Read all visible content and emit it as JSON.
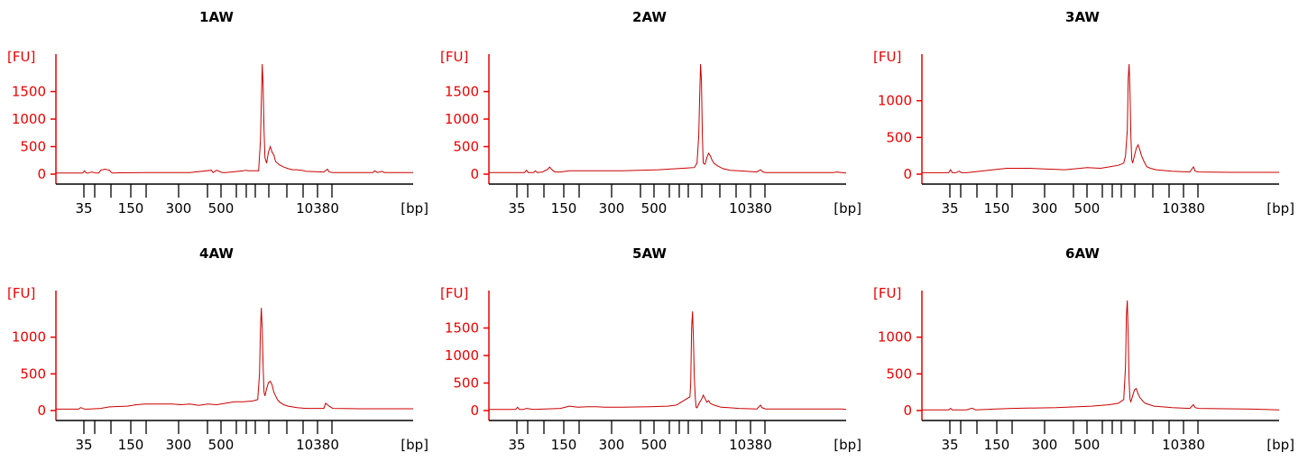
{
  "colors": {
    "trace": "#cc0000",
    "yaxis": "#ee0000",
    "xaxis": "#000000",
    "title": "#000000"
  },
  "chart_data": [
    {
      "type": "line",
      "title": "1AW",
      "ylabel": "[FU]",
      "xlabel": "[bp]",
      "ylim": [
        0,
        2000
      ],
      "yticks": [
        0,
        500,
        1000,
        1500
      ],
      "ladder_bp": [
        "35",
        "",
        "",
        "150",
        "",
        "300",
        "",
        "500",
        "",
        "",
        "",
        "",
        "",
        "",
        "10380"
      ],
      "x_labeled_ticks": [
        "35",
        "150",
        "300",
        "500",
        "10380"
      ],
      "series": [
        {
          "x": [
            0,
            30,
            32,
            34,
            36,
            40,
            45,
            48,
            50,
            55,
            60,
            62,
            64,
            70,
            100,
            150,
            174,
            176,
            180,
            186,
            190,
            210,
            212,
            216,
            227,
            229,
            230,
            231,
            232,
            233,
            234,
            236,
            238,
            240,
            242,
            244,
            246,
            250,
            255,
            260,
            265,
            270,
            275,
            280,
            300,
            304,
            306,
            310,
            355,
            357,
            360,
            365,
            368,
            400
          ],
          "y": [
            20,
            20,
            60,
            20,
            20,
            40,
            20,
            20,
            70,
            90,
            70,
            30,
            20,
            25,
            30,
            30,
            70,
            30,
            70,
            30,
            30,
            60,
            70,
            60,
            60,
            600,
            1300,
            2000,
            1600,
            800,
            300,
            200,
            400,
            500,
            400,
            350,
            230,
            170,
            130,
            100,
            80,
            80,
            70,
            50,
            40,
            90,
            40,
            30,
            30,
            60,
            30,
            50,
            30,
            30
          ]
        }
      ]
    },
    {
      "type": "line",
      "title": "2AW",
      "ylabel": "[FU]",
      "xlabel": "[bp]",
      "ylim": [
        0,
        2000
      ],
      "yticks": [
        0,
        500,
        1000,
        1500
      ],
      "ladder_bp": [
        "35",
        "",
        "",
        "150",
        "",
        "300",
        "",
        "500",
        "",
        "",
        "",
        "",
        "",
        "",
        "10380"
      ],
      "x_labeled_ticks": [
        "35",
        "150",
        "300",
        "500",
        "10380"
      ],
      "series": [
        {
          "x": [
            0,
            40,
            42,
            44,
            50,
            52,
            54,
            60,
            66,
            68,
            70,
            72,
            74,
            80,
            90,
            150,
            190,
            230,
            233,
            235,
            236,
            237,
            238,
            239,
            240,
            242,
            244,
            246,
            248,
            250,
            252,
            256,
            262,
            270,
            280,
            300,
            304,
            307,
            310,
            385,
            390,
            395,
            400
          ],
          "y": [
            30,
            30,
            70,
            30,
            30,
            60,
            30,
            40,
            90,
            130,
            90,
            60,
            40,
            40,
            60,
            60,
            80,
            120,
            200,
            700,
            1400,
            2000,
            1700,
            700,
            200,
            180,
            300,
            380,
            330,
            250,
            200,
            150,
            100,
            70,
            60,
            40,
            80,
            40,
            30,
            30,
            40,
            30,
            20
          ]
        }
      ]
    },
    {
      "type": "line",
      "title": "3AW",
      "ylabel": "[FU]",
      "xlabel": "[bp]",
      "ylim": [
        0,
        1500
      ],
      "yticks": [
        0,
        500,
        1000
      ],
      "ladder_bp": [
        "35",
        "",
        "",
        "150",
        "",
        "300",
        "",
        "500",
        "",
        "",
        "",
        "",
        "",
        "",
        "10380"
      ],
      "x_labeled_ticks": [
        "35",
        "150",
        "300",
        "500",
        "10380"
      ],
      "series": [
        {
          "x": [
            0,
            30,
            32,
            34,
            38,
            42,
            44,
            50,
            80,
            95,
            120,
            160,
            185,
            200,
            210,
            220,
            226,
            228,
            230,
            231,
            232,
            233,
            234,
            235,
            236,
            238,
            240,
            242,
            244,
            246,
            248,
            250,
            252,
            256,
            262,
            270,
            280,
            300,
            304,
            306,
            310,
            350,
            400
          ],
          "y": [
            20,
            20,
            60,
            20,
            20,
            40,
            20,
            20,
            60,
            80,
            80,
            60,
            90,
            80,
            100,
            120,
            150,
            250,
            600,
            1300,
            1500,
            1100,
            500,
            200,
            150,
            250,
            350,
            400,
            330,
            250,
            190,
            140,
            100,
            80,
            60,
            50,
            40,
            30,
            100,
            40,
            30,
            25,
            25
          ]
        }
      ]
    },
    {
      "type": "line",
      "title": "4AW",
      "ylabel": "[FU]",
      "xlabel": "[bp]",
      "ylim": [
        0,
        1500
      ],
      "yticks": [
        0,
        500,
        1000
      ],
      "ladder_bp": [
        "35",
        "",
        "",
        "150",
        "",
        "300",
        "",
        "500",
        "",
        "",
        "",
        "",
        "",
        "",
        "10380"
      ],
      "x_labeled_ticks": [
        "35",
        "150",
        "300",
        "500",
        "10380"
      ],
      "series": [
        {
          "x": [
            0,
            25,
            28,
            32,
            36,
            50,
            60,
            80,
            90,
            100,
            130,
            140,
            150,
            160,
            170,
            180,
            190,
            200,
            210,
            220,
            226,
            228,
            229,
            230,
            231,
            232,
            233,
            234,
            236,
            238,
            240,
            242,
            244,
            246,
            248,
            250,
            255,
            260,
            270,
            280,
            300,
            302,
            306,
            310,
            340,
            400
          ],
          "y": [
            20,
            20,
            40,
            20,
            20,
            30,
            50,
            60,
            80,
            90,
            90,
            80,
            90,
            70,
            90,
            80,
            100,
            120,
            120,
            130,
            150,
            500,
            1100,
            1400,
            1100,
            600,
            250,
            200,
            300,
            380,
            400,
            350,
            250,
            200,
            150,
            120,
            80,
            60,
            40,
            30,
            30,
            100,
            60,
            30,
            25,
            25
          ]
        }
      ]
    },
    {
      "type": "line",
      "title": "5AW",
      "ylabel": "[FU]",
      "xlabel": "[bp]",
      "ylim": [
        0,
        2000
      ],
      "yticks": [
        0,
        500,
        1000,
        1500
      ],
      "ladder_bp": [
        "35",
        "",
        "",
        "150",
        "",
        "300",
        "",
        "500",
        "",
        "",
        "",
        "",
        "",
        "",
        "10380"
      ],
      "x_labeled_ticks": [
        "35",
        "150",
        "300",
        "500",
        "10380"
      ],
      "series": [
        {
          "x": [
            0,
            30,
            32,
            34,
            38,
            42,
            50,
            80,
            90,
            100,
            110,
            120,
            130,
            150,
            180,
            200,
            210,
            215,
            220,
            225,
            226,
            227,
            228,
            229,
            230,
            231,
            232,
            233,
            236,
            238,
            240,
            242,
            244,
            246,
            248,
            252,
            256,
            260,
            270,
            280,
            300,
            304,
            306,
            310,
            395,
            400
          ],
          "y": [
            20,
            20,
            60,
            20,
            20,
            40,
            20,
            40,
            80,
            60,
            70,
            70,
            60,
            60,
            70,
            80,
            100,
            150,
            200,
            250,
            500,
            1500,
            1800,
            1300,
            600,
            250,
            60,
            50,
            150,
            200,
            280,
            220,
            150,
            180,
            130,
            100,
            80,
            60,
            50,
            40,
            30,
            100,
            50,
            30,
            30,
            20
          ]
        }
      ]
    },
    {
      "type": "line",
      "title": "6AW",
      "ylabel": "[FU]",
      "xlabel": "[bp]",
      "ylim": [
        0,
        1500
      ],
      "yticks": [
        0,
        500,
        1000
      ],
      "ladder_bp": [
        "35",
        "",
        "",
        "150",
        "",
        "300",
        "",
        "500",
        "",
        "",
        "",
        "",
        "",
        "",
        "10380"
      ],
      "x_labeled_ticks": [
        "35",
        "150",
        "300",
        "500",
        "10380"
      ],
      "series": [
        {
          "x": [
            0,
            30,
            32,
            34,
            50,
            55,
            57,
            60,
            80,
            100,
            150,
            190,
            210,
            220,
            226,
            228,
            229,
            230,
            231,
            232,
            233,
            234,
            236,
            238,
            240,
            242,
            244,
            246,
            248,
            250,
            255,
            260,
            270,
            280,
            300,
            304,
            306,
            310,
            370,
            400
          ],
          "y": [
            10,
            10,
            30,
            10,
            10,
            30,
            30,
            10,
            20,
            30,
            40,
            60,
            80,
            100,
            150,
            600,
            1300,
            1500,
            1000,
            400,
            150,
            120,
            200,
            280,
            300,
            230,
            180,
            150,
            120,
            100,
            80,
            60,
            50,
            40,
            30,
            80,
            40,
            30,
            20,
            10
          ]
        }
      ]
    }
  ]
}
